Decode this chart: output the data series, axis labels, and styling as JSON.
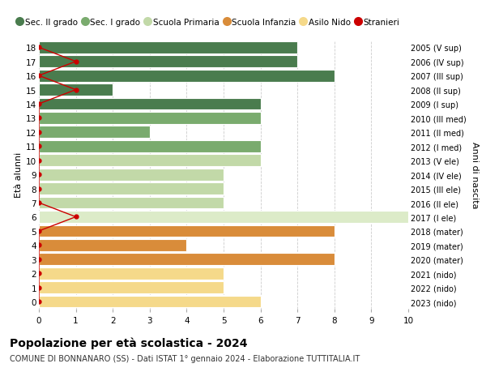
{
  "ages": [
    18,
    17,
    16,
    15,
    14,
    13,
    12,
    11,
    10,
    9,
    8,
    7,
    6,
    5,
    4,
    3,
    2,
    1,
    0
  ],
  "years": [
    "2005 (V sup)",
    "2006 (IV sup)",
    "2007 (III sup)",
    "2008 (II sup)",
    "2009 (I sup)",
    "2010 (III med)",
    "2011 (II med)",
    "2012 (I med)",
    "2013 (V ele)",
    "2014 (IV ele)",
    "2015 (III ele)",
    "2016 (II ele)",
    "2017 (I ele)",
    "2018 (mater)",
    "2019 (mater)",
    "2020 (mater)",
    "2021 (nido)",
    "2022 (nido)",
    "2023 (nido)"
  ],
  "bar_values": [
    7,
    7,
    8,
    2,
    6,
    6,
    3,
    6,
    6,
    5,
    5,
    5,
    10,
    8,
    4,
    8,
    5,
    5,
    6
  ],
  "bar_colors": [
    "#4a7c4e",
    "#4a7c4e",
    "#4a7c4e",
    "#4a7c4e",
    "#4a7c4e",
    "#7aab6e",
    "#7aab6e",
    "#7aab6e",
    "#c2d9a8",
    "#c2d9a8",
    "#c2d9a8",
    "#c2d9a8",
    "#dcebc8",
    "#d98c3a",
    "#d98c3a",
    "#d98c3a",
    "#f5d98a",
    "#f5d98a",
    "#f5d98a"
  ],
  "stranieri_x": [
    0,
    1,
    0,
    1,
    0,
    0,
    0,
    0,
    0,
    0,
    0,
    0,
    1,
    0,
    0,
    0,
    0,
    0,
    0
  ],
  "legend_labels": [
    "Sec. II grado",
    "Sec. I grado",
    "Scuola Primaria",
    "Scuola Infanzia",
    "Asilo Nido",
    "Stranieri"
  ],
  "legend_colors": [
    "#4a7c4e",
    "#7aab6e",
    "#c2d9a8",
    "#d98c3a",
    "#f5d98a",
    "#cc0000"
  ],
  "title_bold": "Popolazione per età scolastica - 2024",
  "subtitle": "COMUNE DI BONNANARO (SS) - Dati ISTAT 1° gennaio 2024 - Elaborazione TUTTITALIA.IT",
  "ylabel_left": "Età alunni",
  "ylabel_right": "Anni di nascita",
  "xlim": [
    0,
    10
  ],
  "background_color": "#ffffff",
  "grid_color": "#cccccc",
  "bar_height": 0.85
}
